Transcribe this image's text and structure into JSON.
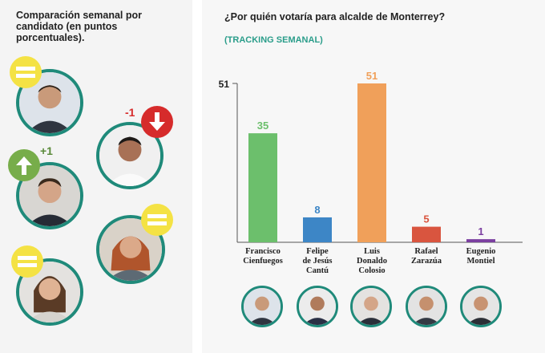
{
  "left_panel": {
    "title": "Comparación semanal por candidato (en puntos porcentuales).",
    "changes": [
      {
        "icon": "equal-icon",
        "label": ""
      },
      {
        "icon": "arrow-down-icon",
        "label": "-1"
      },
      {
        "icon": "arrow-up-icon",
        "label": "+1"
      },
      {
        "icon": "equal-icon",
        "label": ""
      },
      {
        "icon": "equal-icon",
        "label": ""
      }
    ]
  },
  "chart_title": "¿Por quién votaría para alcalde de Monterrey?",
  "chart_subtitle": "(TRACKING SEMANAL)",
  "colors": {
    "teal": "#1f8a7a",
    "green": "#6cbf6c",
    "blue": "#3d86c6",
    "orange": "#f0a05a",
    "red": "#d9553f",
    "purple": "#7b3fa0"
  },
  "chart_data": {
    "type": "bar",
    "title": "¿Por quién votaría para alcalde de Monterrey?",
    "subtitle": "(TRACKING SEMANAL)",
    "categories": [
      [
        "Francisco",
        "Cienfuegos"
      ],
      [
        "Felipe",
        "de Jesús",
        "Cantú"
      ],
      [
        "Luis",
        "Donaldo",
        "Colosio"
      ],
      [
        "Rafael",
        "Zarazúa"
      ],
      [
        "Eugenio",
        "Montiel"
      ]
    ],
    "values": [
      35,
      8,
      51,
      5,
      1
    ],
    "colors": [
      "#6cbf6c",
      "#3d86c6",
      "#f0a05a",
      "#d9553f",
      "#7b3fa0"
    ],
    "ylim": [
      0,
      51
    ],
    "ytick": "51",
    "grid": false
  }
}
